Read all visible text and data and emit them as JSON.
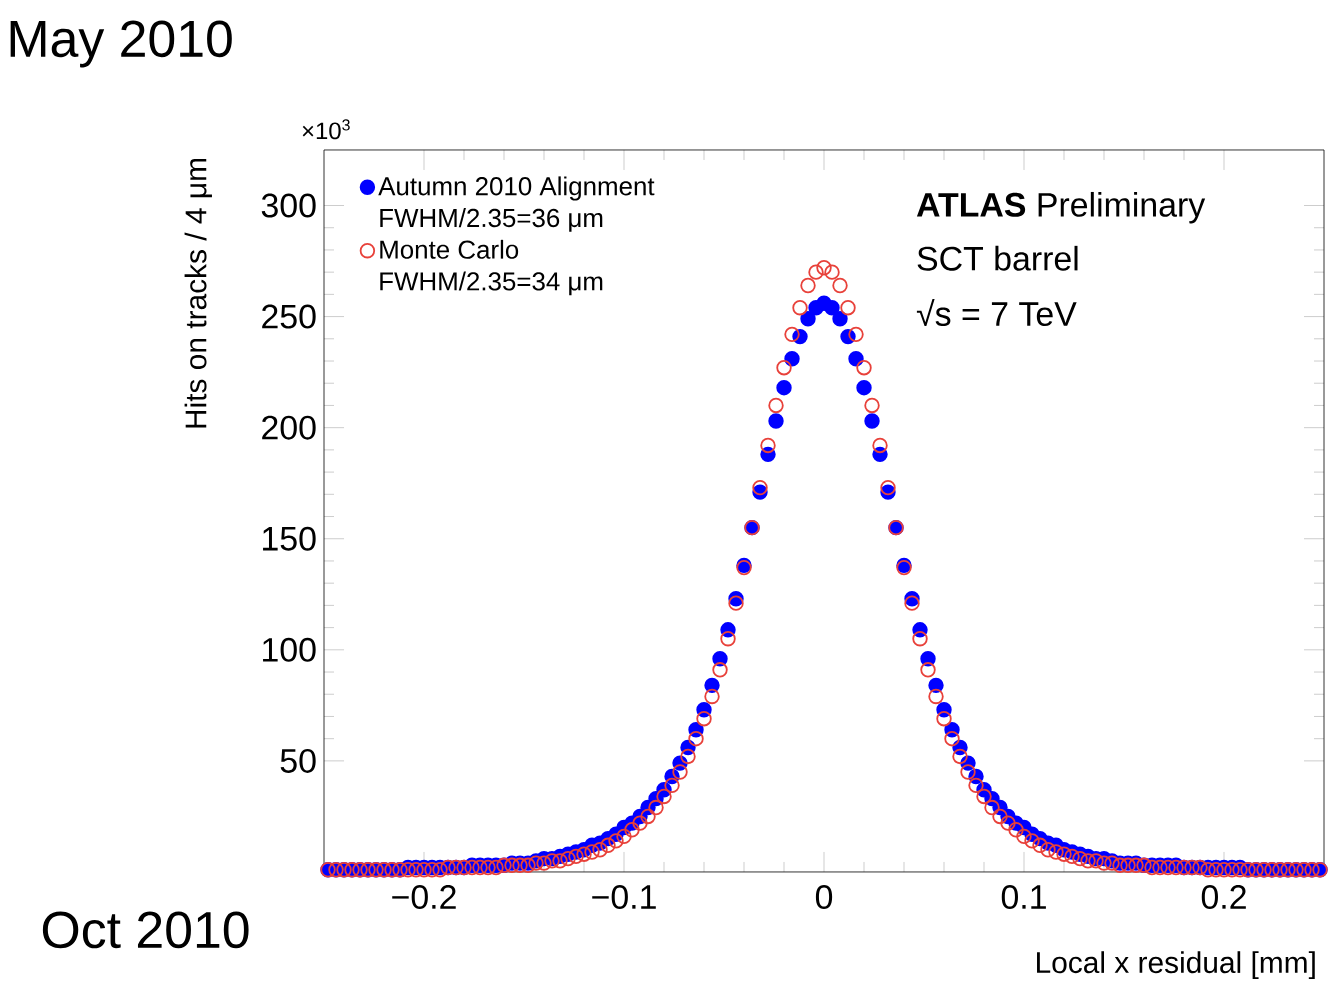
{
  "chart_data": {
    "type": "scatter",
    "xlabel": "Local x residual [mm]",
    "ylabel": "Hits on tracks / 4 μm",
    "xlim": [
      -0.25,
      0.25
    ],
    "ylim": [
      0,
      325
    ],
    "xticks": [
      {
        "value": -0.2,
        "label": "−0.2"
      },
      {
        "value": -0.1,
        "label": "−0.1"
      },
      0,
      0.1,
      0.2
    ],
    "yticks": [
      50,
      100,
      150,
      200,
      250,
      300
    ],
    "marker": "circle",
    "legend": "top left",
    "annotations": [
      "×10$^{3}$",
      "FWHM/2.35=36 μm",
      "FWHM/2.35=34 μm",
      "**ATLAS** Preliminary",
      "SCT barrel",
      "√s = 7 TeV",
      "May 2010",
      "Oct 2010"
    ],
    "x": [
      -0.248,
      -0.244,
      -0.24,
      -0.236,
      -0.232,
      -0.228,
      -0.224,
      -0.22,
      -0.216,
      -0.212,
      -0.208,
      -0.204,
      -0.2,
      -0.196,
      -0.192,
      -0.188,
      -0.184,
      -0.18,
      -0.176,
      -0.172,
      -0.168,
      -0.164,
      -0.16,
      -0.156,
      -0.152,
      -0.148,
      -0.144,
      -0.14,
      -0.136,
      -0.132,
      -0.128,
      -0.124,
      -0.12,
      -0.116,
      -0.112,
      -0.108,
      -0.104,
      -0.1,
      -0.096,
      -0.092,
      -0.088,
      -0.084,
      -0.08,
      -0.076,
      -0.072,
      -0.068,
      -0.064,
      -0.06,
      -0.056,
      -0.052,
      -0.048,
      -0.044,
      -0.04,
      -0.036,
      -0.032,
      -0.028,
      -0.024,
      -0.02,
      -0.016,
      -0.012,
      -0.008,
      -0.004,
      0,
      0.004,
      0.008,
      0.012,
      0.016,
      0.02,
      0.024,
      0.028,
      0.032,
      0.036,
      0.04,
      0.044,
      0.048,
      0.052,
      0.056,
      0.06,
      0.064,
      0.068,
      0.072,
      0.076,
      0.08,
      0.084,
      0.088,
      0.092,
      0.096,
      0.1,
      0.104,
      0.108,
      0.112,
      0.116,
      0.12,
      0.124,
      0.128,
      0.132,
      0.136,
      0.14,
      0.144,
      0.148,
      0.152,
      0.156,
      0.16,
      0.164,
      0.168,
      0.172,
      0.176,
      0.18,
      0.184,
      0.188,
      0.192,
      0.196,
      0.2,
      0.204,
      0.208,
      0.212,
      0.216,
      0.22,
      0.224,
      0.228,
      0.232,
      0.236,
      0.24,
      0.244,
      0.248
    ],
    "series": [
      {
        "name": "Autumn 2010 Alignment",
        "color": "#0000ff",
        "values": [
          1,
          1,
          1,
          1,
          1,
          1,
          1,
          1,
          1,
          1,
          2,
          2,
          2,
          2,
          2,
          2,
          2,
          2,
          3,
          3,
          3,
          3,
          3,
          4,
          4,
          4,
          5,
          6,
          6,
          7,
          8,
          9,
          10,
          12,
          13,
          15,
          17,
          20,
          22,
          25,
          29,
          33,
          37,
          43,
          49,
          56,
          64,
          73,
          84,
          96,
          109,
          123,
          138,
          155,
          171,
          188,
          203,
          218,
          231,
          241,
          249,
          254,
          256,
          254,
          249,
          241,
          231,
          218,
          203,
          188,
          171,
          155,
          138,
          123,
          109,
          96,
          84,
          73,
          64,
          56,
          49,
          43,
          37,
          33,
          29,
          25,
          22,
          20,
          17,
          15,
          13,
          12,
          10,
          9,
          8,
          7,
          6,
          6,
          5,
          4,
          4,
          4,
          3,
          3,
          3,
          3,
          3,
          2,
          2,
          2,
          2,
          2,
          2,
          2,
          2,
          1,
          1,
          1,
          1,
          1,
          1,
          1,
          1,
          1,
          1
        ]
      },
      {
        "name": "Monte Carlo",
        "color": "#e8413a",
        "values": [
          1,
          1,
          1,
          1,
          1,
          1,
          1,
          1,
          1,
          1,
          1,
          1,
          1,
          1,
          1,
          2,
          2,
          2,
          2,
          2,
          2,
          2,
          3,
          3,
          3,
          3,
          4,
          4,
          5,
          5,
          6,
          7,
          8,
          9,
          10,
          12,
          14,
          16,
          19,
          22,
          25,
          29,
          34,
          39,
          45,
          52,
          60,
          69,
          79,
          91,
          105,
          121,
          137,
          155,
          173,
          192,
          210,
          227,
          242,
          254,
          264,
          270,
          272,
          270,
          264,
          254,
          242,
          227,
          210,
          192,
          173,
          155,
          137,
          121,
          105,
          91,
          79,
          69,
          60,
          52,
          45,
          39,
          34,
          29,
          25,
          22,
          19,
          16,
          14,
          12,
          10,
          9,
          8,
          7,
          6,
          5,
          5,
          4,
          4,
          3,
          3,
          3,
          3,
          2,
          2,
          2,
          2,
          2,
          2,
          2,
          1,
          1,
          1,
          1,
          1,
          1,
          1,
          1,
          1,
          1,
          1,
          1,
          1,
          1,
          1
        ]
      }
    ]
  }
}
